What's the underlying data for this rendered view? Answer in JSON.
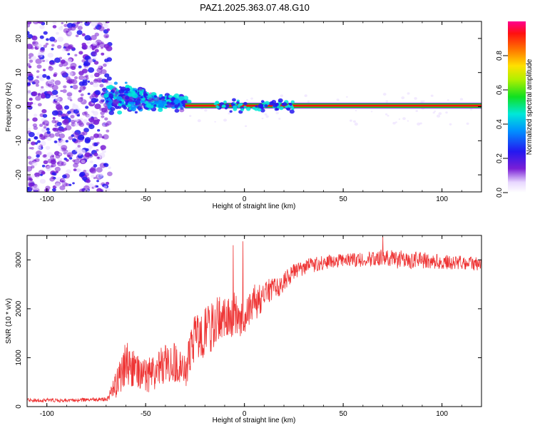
{
  "figure_title": "PAZ1.2025.363.07.48.G10",
  "chart_data": [
    {
      "type": "heatmap",
      "title": "PAZ1.2025.363.07.48.G10",
      "xlabel": "Height of straight line (km)",
      "ylabel": "Frequency (Hz)",
      "xlim": [
        -110,
        120
      ],
      "ylim": [
        -25,
        25
      ],
      "xticks": [
        -100,
        -50,
        0,
        50,
        100
      ],
      "yticks": [
        -20,
        -10,
        0,
        10,
        20
      ],
      "colorbar": {
        "label": "Normalized spectral amplitude",
        "range": [
          0,
          1
        ],
        "ticks": [
          0.0,
          0.2,
          0.4,
          0.6,
          0.8
        ],
        "colormap": "rainbow (white-purple-blue-cyan-green-yellow-orange-red-magenta)"
      },
      "regions": [
        {
          "x_range": [
            -110,
            -70
          ],
          "description": "scattered noise",
          "freq_range": [
            -25,
            25
          ],
          "amplitude": [
            0.0,
            0.15
          ]
        },
        {
          "x_range": [
            -70,
            -30
          ],
          "description": "broadened signal",
          "freq_center": 3,
          "amplitude": [
            0.1,
            0.4
          ]
        },
        {
          "x_range": [
            -30,
            120
          ],
          "description": "narrow carrier line",
          "freq_center": 0.3,
          "amplitude": [
            0.8,
            1.0
          ]
        }
      ]
    },
    {
      "type": "line",
      "xlabel": "Height of straight line (km)",
      "ylabel": "SNR (10 * v/v)",
      "xlim": [
        -110,
        120
      ],
      "ylim": [
        0,
        3500
      ],
      "xticks": [
        -100,
        -50,
        0,
        50,
        100
      ],
      "yticks": [
        0,
        1000,
        2000,
        3000
      ],
      "series": [
        {
          "name": "SNR",
          "color": "#ee3333",
          "x": [
            -110,
            -90,
            -70,
            -66,
            -60,
            -55,
            -50,
            -45,
            -40,
            -35,
            -30,
            -25,
            -20,
            -15,
            -10,
            -5,
            0,
            5,
            10,
            15,
            20,
            25,
            30,
            40,
            50,
            60,
            70,
            80,
            90,
            100,
            110,
            120
          ],
          "mean": [
            130,
            130,
            150,
            350,
            900,
            700,
            600,
            750,
            900,
            900,
            700,
            1400,
            1500,
            1700,
            1800,
            1900,
            1800,
            2100,
            2300,
            2400,
            2550,
            2750,
            2850,
            2950,
            3000,
            3000,
            3050,
            3000,
            3000,
            2950,
            2950,
            2900
          ],
          "spread": [
            40,
            40,
            40,
            250,
            450,
            400,
            350,
            400,
            400,
            400,
            350,
            500,
            500,
            550,
            450,
            450,
            450,
            400,
            300,
            250,
            200,
            180,
            160,
            150,
            140,
            150,
            170,
            200,
            180,
            150,
            140,
            140
          ],
          "peaks": [
            {
              "x": -0.8,
              "y": 3380
            },
            {
              "x": -5.6,
              "y": 3300
            },
            {
              "x": 70,
              "y": 3480
            }
          ]
        }
      ]
    }
  ]
}
